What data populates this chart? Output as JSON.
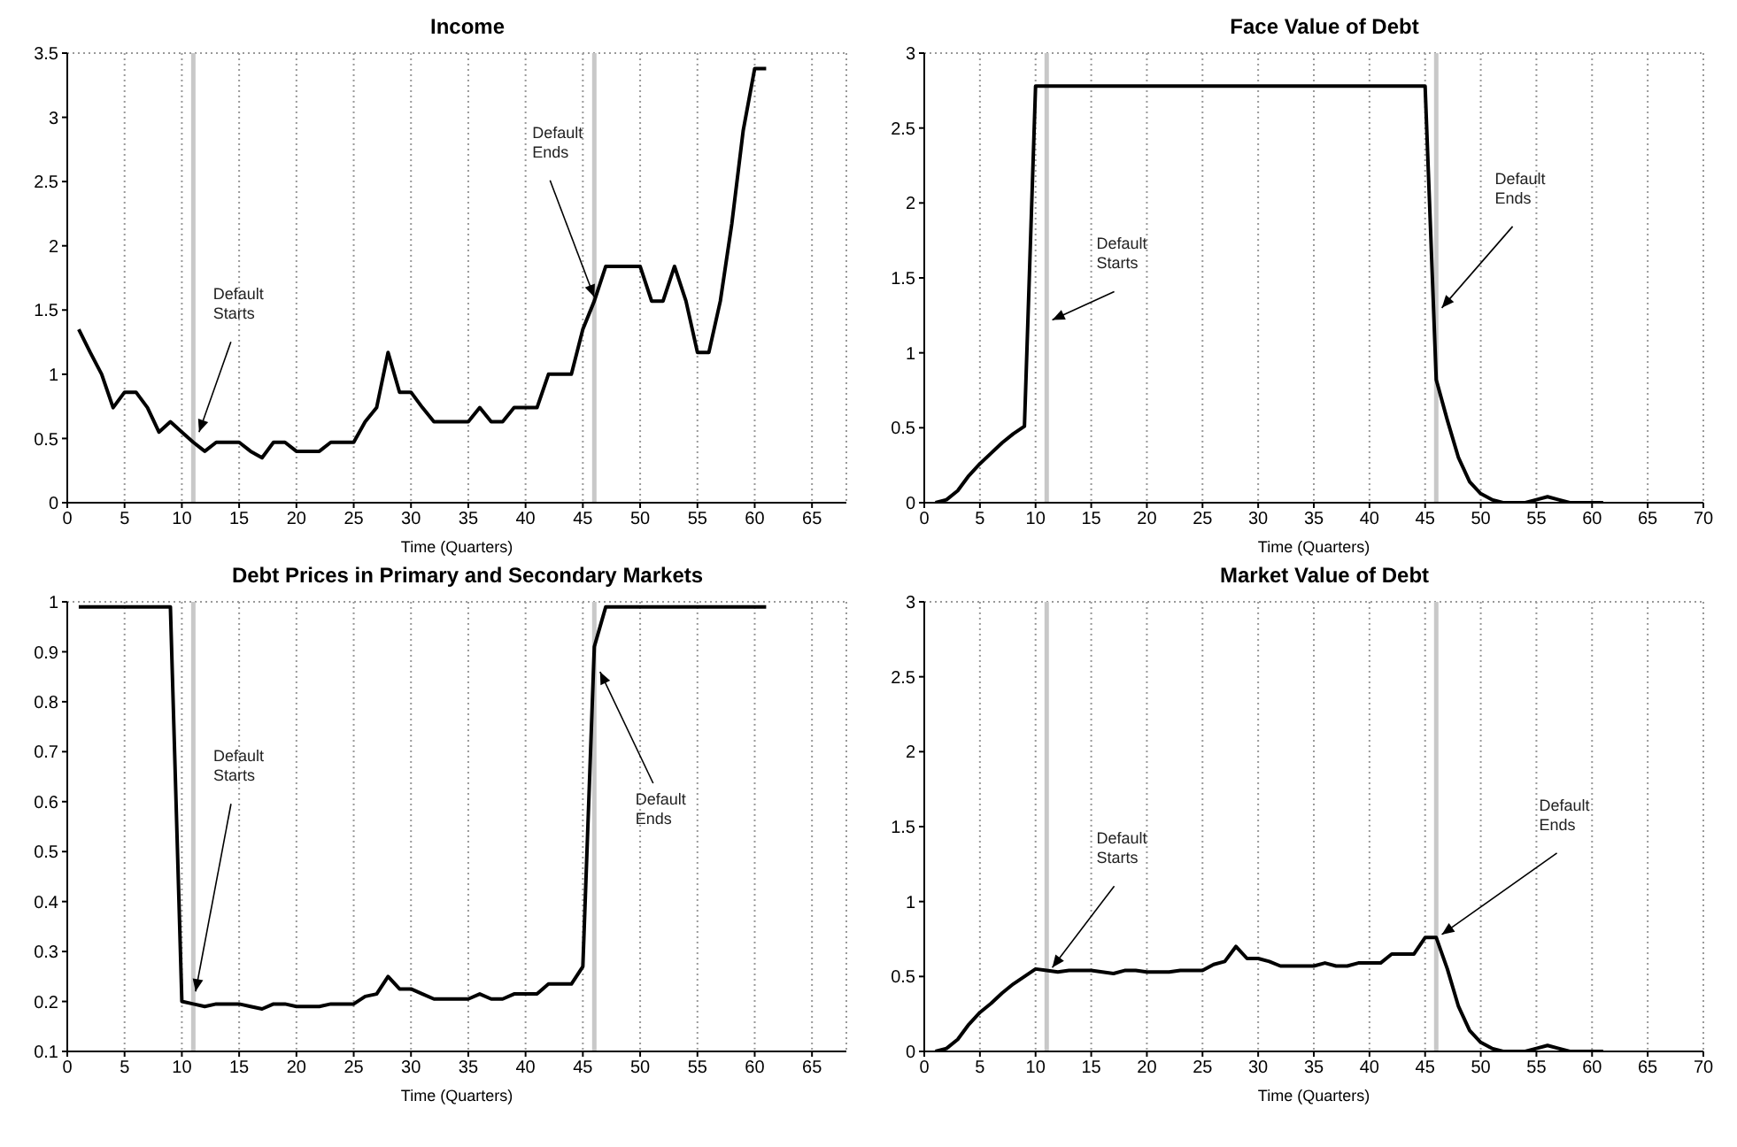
{
  "chart_data": [
    {
      "type": "line",
      "title": "Income",
      "xlabel": "Time (Quarters)",
      "x": [
        1,
        2,
        3,
        4,
        5,
        6,
        7,
        8,
        9,
        10,
        11,
        12,
        13,
        14,
        15,
        16,
        17,
        18,
        19,
        20,
        21,
        22,
        23,
        24,
        25,
        26,
        27,
        28,
        29,
        30,
        31,
        32,
        33,
        34,
        35,
        36,
        37,
        38,
        39,
        40,
        41,
        42,
        43,
        44,
        45,
        46,
        47,
        48,
        49,
        50,
        51,
        52,
        53,
        54,
        55,
        56,
        57,
        58,
        59,
        60,
        61
      ],
      "series": [
        {
          "color": "#000000",
          "values": [
            1.35,
            1.17,
            1.0,
            0.74,
            0.86,
            0.86,
            0.74,
            0.55,
            0.63,
            0.55,
            0.47,
            0.4,
            0.47,
            0.47,
            0.47,
            0.4,
            0.35,
            0.47,
            0.47,
            0.4,
            0.4,
            0.4,
            0.47,
            0.47,
            0.47,
            0.63,
            0.74,
            1.17,
            0.86,
            0.86,
            0.74,
            0.63,
            0.63,
            0.63,
            0.63,
            0.74,
            0.63,
            0.63,
            0.74,
            0.74,
            0.74,
            1.0,
            1.0,
            1.0,
            1.35,
            1.57,
            1.84,
            1.84,
            1.84,
            1.84,
            1.57,
            1.57,
            1.84,
            1.57,
            1.17,
            1.17,
            1.57,
            2.17,
            2.9,
            3.38,
            3.38
          ]
        }
      ],
      "xlim": [
        0,
        68
      ],
      "xticks": [
        0,
        5,
        10,
        15,
        20,
        25,
        30,
        35,
        40,
        45,
        50,
        55,
        60,
        65
      ],
      "ylim": [
        0,
        3.5
      ],
      "yticks": [
        0,
        0.5,
        1,
        1.5,
        2,
        2.5,
        3,
        3.5
      ],
      "grid": true,
      "marker": "none",
      "line_style": "solid",
      "ref_lines": [
        {
          "axis": "x",
          "value": 11,
          "color": "#c8c8c8"
        },
        {
          "axis": "x",
          "value": 46,
          "color": "#c8c8c8"
        }
      ],
      "annotations": [
        {
          "text": "Default\nStarts",
          "x": 11.5,
          "y": 0.55
        },
        {
          "text": "Default\nEnds",
          "x": 46,
          "y": 1.6
        }
      ]
    },
    {
      "type": "line",
      "title": "Face Value of Debt",
      "xlabel": "Time (Quarters)",
      "x": [
        1,
        2,
        3,
        4,
        5,
        6,
        7,
        8,
        9,
        10,
        11,
        12,
        13,
        14,
        15,
        16,
        17,
        18,
        19,
        20,
        21,
        22,
        23,
        24,
        25,
        26,
        27,
        28,
        29,
        30,
        31,
        32,
        33,
        34,
        35,
        36,
        37,
        38,
        39,
        40,
        41,
        42,
        43,
        44,
        45,
        46,
        47,
        48,
        49,
        50,
        51,
        52,
        53,
        54,
        55,
        56,
        57,
        58,
        59,
        60,
        61
      ],
      "series": [
        {
          "color": "#000000",
          "values": [
            0,
            0.02,
            0.08,
            0.18,
            0.26,
            0.33,
            0.4,
            0.46,
            0.51,
            2.78,
            2.78,
            2.78,
            2.78,
            2.78,
            2.78,
            2.78,
            2.78,
            2.78,
            2.78,
            2.78,
            2.78,
            2.78,
            2.78,
            2.78,
            2.78,
            2.78,
            2.78,
            2.78,
            2.78,
            2.78,
            2.78,
            2.78,
            2.78,
            2.78,
            2.78,
            2.78,
            2.78,
            2.78,
            2.78,
            2.78,
            2.78,
            2.78,
            2.78,
            2.78,
            2.78,
            0.82,
            0.55,
            0.3,
            0.14,
            0.06,
            0.02,
            0,
            0,
            0,
            0.02,
            0.04,
            0.02,
            0,
            0,
            0,
            0
          ]
        }
      ],
      "xlim": [
        0,
        70
      ],
      "xticks": [
        0,
        5,
        10,
        15,
        20,
        25,
        30,
        35,
        40,
        45,
        50,
        55,
        60,
        65,
        70
      ],
      "ylim": [
        0,
        3
      ],
      "yticks": [
        0,
        0.5,
        1,
        1.5,
        2,
        2.5,
        3
      ],
      "grid": true,
      "marker": "none",
      "line_style": "solid",
      "ref_lines": [
        {
          "axis": "x",
          "value": 11,
          "color": "#c8c8c8"
        },
        {
          "axis": "x",
          "value": 46,
          "color": "#c8c8c8"
        }
      ],
      "annotations": [
        {
          "text": "Default\nStarts",
          "x": 11.5,
          "y": 1.22
        },
        {
          "text": "Default\nEnds",
          "x": 46.5,
          "y": 1.3
        }
      ]
    },
    {
      "type": "line",
      "title": "Debt Prices in Primary and Secondary Markets",
      "xlabel": "Time (Quarters)",
      "x": [
        1,
        2,
        3,
        4,
        5,
        6,
        7,
        8,
        9,
        10,
        11,
        12,
        13,
        14,
        15,
        16,
        17,
        18,
        19,
        20,
        21,
        22,
        23,
        24,
        25,
        26,
        27,
        28,
        29,
        30,
        31,
        32,
        33,
        34,
        35,
        36,
        37,
        38,
        39,
        40,
        41,
        42,
        43,
        44,
        45,
        46,
        47,
        48,
        49,
        50,
        51,
        52,
        53,
        54,
        55,
        56,
        57,
        58,
        59,
        60,
        61
      ],
      "series": [
        {
          "color": "#000000",
          "values": [
            0.99,
            0.99,
            0.99,
            0.99,
            0.99,
            0.99,
            0.99,
            0.99,
            0.99,
            0.2,
            0.195,
            0.19,
            0.195,
            0.195,
            0.195,
            0.19,
            0.185,
            0.195,
            0.195,
            0.19,
            0.19,
            0.19,
            0.195,
            0.195,
            0.195,
            0.21,
            0.215,
            0.25,
            0.225,
            0.225,
            0.215,
            0.205,
            0.205,
            0.205,
            0.205,
            0.215,
            0.205,
            0.205,
            0.215,
            0.215,
            0.215,
            0.235,
            0.235,
            0.235,
            0.27,
            0.91,
            0.99,
            0.99,
            0.99,
            0.99,
            0.99,
            0.99,
            0.99,
            0.99,
            0.99,
            0.99,
            0.99,
            0.99,
            0.99,
            0.99,
            0.99
          ]
        }
      ],
      "xlim": [
        0,
        68
      ],
      "xticks": [
        0,
        5,
        10,
        15,
        20,
        25,
        30,
        35,
        40,
        45,
        50,
        55,
        60,
        65
      ],
      "ylim": [
        0.1,
        1
      ],
      "yticks": [
        0.1,
        0.2,
        0.3,
        0.4,
        0.5,
        0.6,
        0.7,
        0.8,
        0.9,
        1
      ],
      "grid": true,
      "marker": "none",
      "line_style": "solid",
      "ref_lines": [
        {
          "axis": "x",
          "value": 11,
          "color": "#c8c8c8"
        },
        {
          "axis": "x",
          "value": 46,
          "color": "#c8c8c8"
        }
      ],
      "annotations": [
        {
          "text": "Default\nStarts",
          "x": 11.2,
          "y": 0.22
        },
        {
          "text": "Default\nEnds",
          "x": 46.5,
          "y": 0.86
        }
      ]
    },
    {
      "type": "line",
      "title": "Market Value of Debt",
      "xlabel": "Time (Quarters)",
      "x": [
        1,
        2,
        3,
        4,
        5,
        6,
        7,
        8,
        9,
        10,
        11,
        12,
        13,
        14,
        15,
        16,
        17,
        18,
        19,
        20,
        21,
        22,
        23,
        24,
        25,
        26,
        27,
        28,
        29,
        30,
        31,
        32,
        33,
        34,
        35,
        36,
        37,
        38,
        39,
        40,
        41,
        42,
        43,
        44,
        45,
        46,
        47,
        48,
        49,
        50,
        51,
        52,
        53,
        54,
        55,
        56,
        57,
        58,
        59,
        60,
        61
      ],
      "series": [
        {
          "color": "#000000",
          "values": [
            0,
            0.02,
            0.08,
            0.18,
            0.26,
            0.32,
            0.39,
            0.45,
            0.5,
            0.55,
            0.54,
            0.53,
            0.54,
            0.54,
            0.54,
            0.53,
            0.52,
            0.54,
            0.54,
            0.53,
            0.53,
            0.53,
            0.54,
            0.54,
            0.54,
            0.58,
            0.6,
            0.7,
            0.62,
            0.62,
            0.6,
            0.57,
            0.57,
            0.57,
            0.57,
            0.59,
            0.57,
            0.57,
            0.59,
            0.59,
            0.59,
            0.65,
            0.65,
            0.65,
            0.76,
            0.76,
            0.55,
            0.3,
            0.14,
            0.06,
            0.02,
            0,
            0,
            0,
            0.02,
            0.04,
            0.02,
            0,
            0,
            0,
            0
          ]
        }
      ],
      "xlim": [
        0,
        70
      ],
      "xticks": [
        0,
        5,
        10,
        15,
        20,
        25,
        30,
        35,
        40,
        45,
        50,
        55,
        60,
        65,
        70
      ],
      "ylim": [
        0,
        3
      ],
      "yticks": [
        0,
        0.5,
        1,
        1.5,
        2,
        2.5,
        3
      ],
      "grid": true,
      "marker": "none",
      "line_style": "solid",
      "ref_lines": [
        {
          "axis": "x",
          "value": 11,
          "color": "#c8c8c8"
        },
        {
          "axis": "x",
          "value": 46,
          "color": "#c8c8c8"
        }
      ],
      "annotations": [
        {
          "text": "Default\nStarts",
          "x": 11.5,
          "y": 0.56
        },
        {
          "text": "Default\nEnds",
          "x": 46.5,
          "y": 0.78
        }
      ]
    }
  ]
}
